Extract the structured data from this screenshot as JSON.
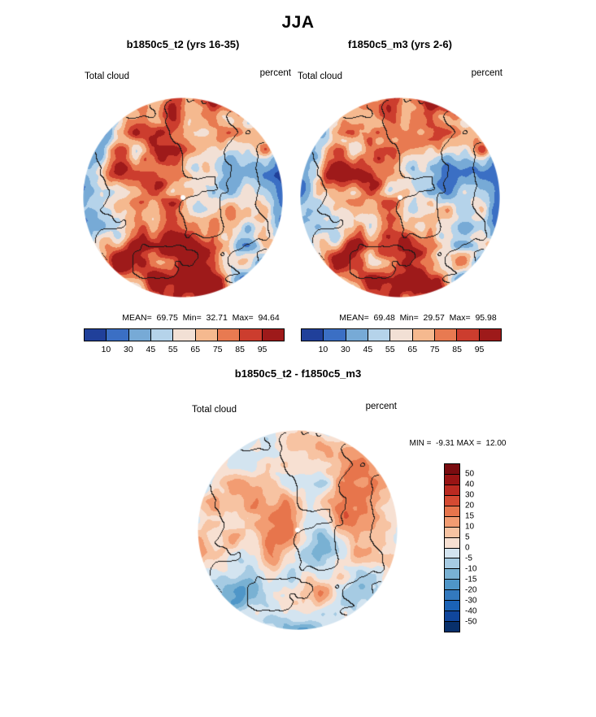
{
  "title": "JJA",
  "panels": [
    {
      "title": "b1850c5_t2 (yrs 16-35)",
      "field_label": "Total cloud",
      "units_label": "percent",
      "stats_text": "MEAN=  69.75  Min=  32.71  Max=  94.64"
    },
    {
      "title": "f1850c5_m3 (yrs 2-6)",
      "field_label": "Total cloud",
      "units_label": "percent",
      "stats_text": "MEAN=  69.48  Min=  29.57  Max=  95.98"
    }
  ],
  "difference": {
    "title": "b1850c5_t2 - f1850c5_m3",
    "field_label": "Total cloud",
    "units_label": "percent",
    "minmax_text": "MIN =  -9.31 MAX =  12.00"
  },
  "colorbar_top": {
    "tick_labels": [
      "10",
      "30",
      "45",
      "55",
      "65",
      "75",
      "85",
      "95"
    ],
    "levels": [
      10,
      30,
      45,
      55,
      65,
      75,
      85,
      95
    ],
    "colors": [
      "#20409a",
      "#3b6fc4",
      "#77aad6",
      "#b5d3ea",
      "#f2e0d5",
      "#f5b98f",
      "#e87a51",
      "#cc3d2e",
      "#9e1a1a"
    ]
  },
  "colorbar_diff": {
    "tick_labels": [
      "50",
      "40",
      "30",
      "20",
      "15",
      "10",
      "5",
      "0",
      "-5",
      "-10",
      "-15",
      "-20",
      "-30",
      "-40",
      "-50"
    ],
    "levels": [
      -50,
      -40,
      -30,
      -20,
      -15,
      -10,
      -5,
      0,
      5,
      10,
      15,
      20,
      30,
      40,
      50
    ],
    "colors": [
      "#08306b",
      "#10469c",
      "#1b62b5",
      "#3379be",
      "#4f96c8",
      "#79b1d3",
      "#a6cbe3",
      "#d3e4f0",
      "#f7e0d2",
      "#f7c3a2",
      "#f29c72",
      "#e7754c",
      "#d54a32",
      "#bb2a21",
      "#991414",
      "#7a0c10"
    ]
  },
  "chart_data": [
    {
      "type": "heatmap",
      "subtype": "polar_stereographic_filled_contour_map",
      "season": "JJA",
      "title": "b1850c5_t2 (yrs 16-35)",
      "variable": "Total cloud",
      "units": "percent",
      "stats": {
        "mean": 69.75,
        "min": 32.71,
        "max": 94.64
      },
      "contour_levels": [
        10,
        30,
        45,
        55,
        65,
        75,
        85,
        95
      ],
      "palette": "blue-white-red diverging",
      "legend_position": "below"
    },
    {
      "type": "heatmap",
      "subtype": "polar_stereographic_filled_contour_map",
      "season": "JJA",
      "title": "f1850c5_m3 (yrs 2-6)",
      "variable": "Total cloud",
      "units": "percent",
      "stats": {
        "mean": 69.48,
        "min": 29.57,
        "max": 95.98
      },
      "contour_levels": [
        10,
        30,
        45,
        55,
        65,
        75,
        85,
        95
      ],
      "palette": "blue-white-red diverging",
      "legend_position": "below"
    },
    {
      "type": "heatmap",
      "subtype": "polar_stereographic_filled_contour_map",
      "season": "JJA",
      "title": "b1850c5_t2 - f1850c5_m3",
      "variable": "Total cloud difference",
      "units": "percent",
      "stats": {
        "min": -9.31,
        "max": 12.0
      },
      "contour_levels": [
        -50,
        -40,
        -30,
        -20,
        -15,
        -10,
        -5,
        0,
        5,
        10,
        15,
        20,
        30,
        40,
        50
      ],
      "palette": "blue-white-red diverging",
      "legend_position": "right"
    }
  ]
}
